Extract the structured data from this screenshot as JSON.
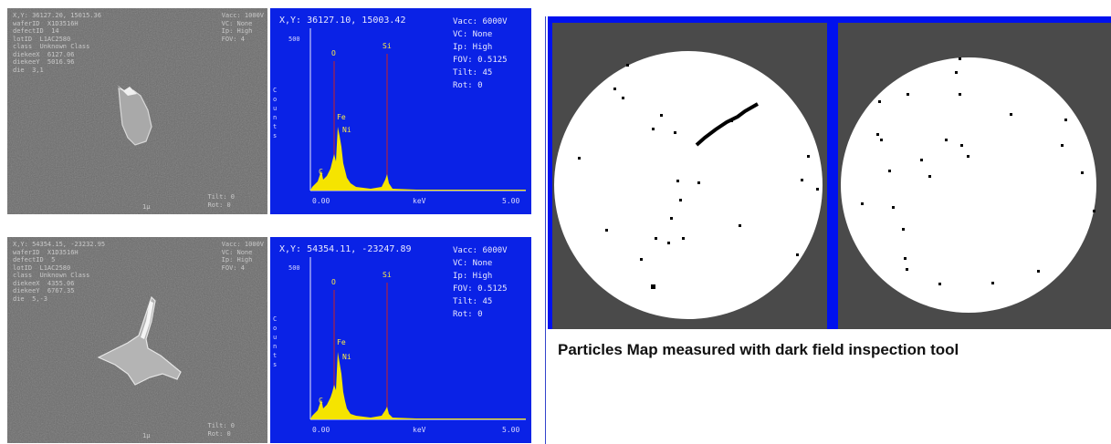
{
  "sem_images": [
    {
      "overlay": "X,Y: 36127.20, 15015.36\nwaferID  X1D3516H\ndefectID  14\nlotID  L1AC2580\nclass  Unknown Class\ndiekeeX  6127.06\ndiekeeY  5016.96\ndie  3,1",
      "top_right": "Vacc: 1000V\nVC: None\nIp: High\nFOV: 4",
      "footer": "Tilt: 0\nRot: 0",
      "scale": "1μ"
    },
    {
      "overlay": "X,Y: 54354.15, -23232.95\nwaferID  X1D3516H\ndefectID  5\nlotID  L1AC2580\nclass  Unknown Class\ndiekeeX  4355.06\ndiekeeY  6767.35\ndie  5,-3",
      "top_right": "Vacc: 1000V\nVC: None\nIp: High\nFOV: 4",
      "footer": "Tilt: 0\nRot: 0",
      "scale": "1μ"
    }
  ],
  "eds_spectra": [
    {
      "coords": "X,Y: 36127.10, 15003.42",
      "params": "Vacc: 6000V\nVC: None\nIp: High\nFOV: 0.5125\nTilt: 45\nRot: 0",
      "ylabel": "C\no\nu\nn\nt\ns",
      "ymax": "500",
      "peaks": [
        "C",
        "O",
        "Fe",
        "Ni",
        "Si"
      ],
      "x_start": "0.00",
      "x_unit": "keV",
      "x_end": "5.00"
    },
    {
      "coords": "X,Y: 54354.11, -23247.89",
      "params": "Vacc: 6000V\nVC: None\nIp: High\nFOV: 0.5125\nTilt: 45\nRot: 0",
      "ylabel": "C\no\nu\nn\nt\ns",
      "ymax": "500",
      "peaks": [
        "C",
        "O",
        "Fe",
        "Ni",
        "Si"
      ],
      "x_start": "0.00",
      "x_unit": "keV",
      "x_end": "5.00"
    }
  ],
  "caption": "Particles Map measured with dark field inspection tool",
  "colors": {
    "eds_background": "#0a22e6",
    "spectrum_fill": "#f5e400",
    "peak_marker": "#cc2222",
    "map_background": "#4a4a4a",
    "map_border": "#0011ee",
    "wafer": "#ffffff",
    "particle": "#000000"
  }
}
